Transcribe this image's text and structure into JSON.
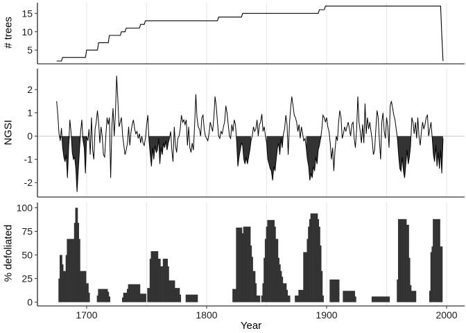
{
  "chart_data": [
    {
      "type": "line",
      "ylabel": "# trees",
      "xlabel": "",
      "xlim": [
        1659,
        2015
      ],
      "ylim": [
        1.25,
        17.9
      ],
      "y_ticks": [
        5,
        10,
        15
      ],
      "y_tick_labels": [
        "5",
        "10",
        "15"
      ],
      "x_gridlines": [
        1700,
        1750,
        1800,
        1850,
        1900,
        1950,
        2000
      ],
      "grid": true,
      "line_color": "#000000",
      "steps": [
        [
          1675,
          2
        ],
        [
          1680,
          3
        ],
        [
          1700,
          5
        ],
        [
          1710,
          7
        ],
        [
          1719,
          9
        ],
        [
          1729,
          10
        ],
        [
          1733,
          11
        ],
        [
          1745,
          12
        ],
        [
          1749,
          13
        ],
        [
          1810,
          14
        ],
        [
          1830,
          15
        ],
        [
          1894,
          16
        ],
        [
          1899,
          17
        ],
        [
          1996,
          9
        ],
        [
          1997,
          2
        ]
      ],
      "end_year": 1997
    },
    {
      "type": "line",
      "ylabel": "NGSI",
      "xlabel": "",
      "xlim": [
        1659,
        2015
      ],
      "ylim": [
        -2.62,
        2.9
      ],
      "y_ticks": [
        -2,
        -1,
        0,
        1,
        2
      ],
      "y_tick_labels": [
        "-2",
        "-1",
        "0",
        "1",
        "2"
      ],
      "x_gridlines": [
        1700,
        1750,
        1800,
        1850,
        1900,
        1950,
        2000
      ],
      "grid": true,
      "zero_line": true,
      "line_color": "#000000",
      "fill_color": "#333333",
      "outbreak_periods": [
        [
          1677,
          1700
        ],
        [
          1752,
          1769
        ],
        [
          1825,
          1837
        ],
        [
          1850,
          1864
        ],
        [
          1883,
          1896
        ],
        [
          1959,
          1970
        ],
        [
          1988,
          1997
        ]
      ],
      "segments": [
        {
          "start": 1675,
          "values": [
            1.5,
            0.9,
            0.1,
            -0.2,
            0.35,
            -0.5,
            -0.9,
            -1.1,
            -0.8,
            -1.8,
            -0.5,
            0.7,
            0.2,
            -0.7,
            -1.0,
            -0.9,
            -1.4,
            -2.4,
            -1.5,
            -0.6,
            0.2,
            0.7,
            -0.2,
            -0.5,
            -1.6,
            0.0,
            -0.2,
            0.3,
            -0.8,
            0.8,
            -0.6,
            -1.0,
            0.3,
            0.6,
            1.1,
            0.6,
            -0.3,
            0.4,
            0.0,
            -0.8,
            -0.9,
            0.0,
            0.8,
            0.5,
            0.8,
            -1.8,
            0.4,
            1.2,
            0.0,
            1.0,
            2.6,
            1.6,
            0.4,
            0.6,
            0.8,
            0.0,
            -0.4,
            -0.8,
            -0.6,
            -0.3,
            0.4,
            -0.4,
            0.2,
            0.5,
            0.7,
            0.3,
            0.1,
            0.2,
            -0.1,
            0.1
          ]
        },
        {
          "start": 1745,
          "values": [
            -0.3,
            0.0,
            -0.3,
            -0.4,
            -0.1,
            0.5,
            0.9,
            -0.2,
            -0.8,
            -1.3,
            -0.5,
            -1.0,
            -0.4,
            -0.7,
            -0.6,
            -0.1,
            -1.2,
            -0.5,
            -0.8,
            -0.3,
            -0.5,
            -0.2,
            -0.6,
            -0.3,
            -0.1,
            0.2,
            -0.6,
            -1.1,
            0.4,
            -0.4,
            -0.7,
            -0.1,
            0.0,
            0.3,
            0.9,
            0.6,
            0.7,
            0.5,
            0.7,
            -0.4,
            0.4,
            -0.5,
            -0.7,
            -0.3,
            -0.6,
            0.5,
            1.8,
            0.8,
            0.4,
            0.3,
            0.0,
            0.8,
            0.9,
            0.3,
            0.0,
            -0.1,
            -0.2,
            0.1,
            0.6,
            0.4,
            0.2,
            0.8,
            1.7,
            1.3,
            0.6,
            0.0,
            -0.1,
            0.2,
            0.1,
            0.4,
            0.6,
            1.3,
            1.0,
            0.5,
            0.0,
            -0.1,
            0.5,
            0.2,
            0.7,
            0.5,
            -0.2,
            -1.3,
            -0.9,
            -0.6,
            -0.3,
            -0.4,
            -1.0,
            -1.2,
            -0.9,
            -1.2,
            -0.9,
            -0.6,
            -0.2
          ]
        },
        {
          "start": 1838,
          "values": [
            0.0,
            0.4,
            0.2,
            0.3,
            0.7,
            0.0,
            0.5,
            0.6,
            0.95,
            0.2,
            0.4,
            0.0,
            -0.3,
            -1.0,
            -1.2,
            -1.4,
            -1.5,
            -1.9,
            -1.3,
            -1.5,
            -1.0,
            -0.5,
            -0.3,
            -0.8,
            -0.1,
            -0.5,
            0.1,
            0.3,
            0.9,
            0.5,
            -0.8,
            0.5,
            1.2,
            1.7,
            1.3,
            0.9,
            0.8,
            0.6,
            0.2,
            0.5,
            -0.1,
            0.4,
            0.1,
            -0.2,
            -0.1,
            -0.5,
            -1.0,
            -1.3,
            -1.9,
            -1.6,
            -1.8,
            -1.3,
            -1.5,
            -0.9,
            -1.2,
            -0.6,
            -0.4,
            -0.1,
            0.3,
            0.9,
            0.8,
            0.6,
            0.8,
            0.4,
            0.2,
            -0.3,
            -1.0,
            -0.5,
            -1.5,
            -0.6,
            0.0,
            -0.2,
            0.6,
            1.1,
            0.8,
            -0.1,
            0.1,
            0.4,
            0.2,
            0.4,
            0.6,
            0.3,
            0.0,
            0.5,
            0.6,
            -0.1,
            -0.5,
            0.3,
            1.7,
            0.6,
            0.2,
            -0.3,
            0.5,
            -0.3,
            1.4,
            0.1,
            0.8,
            0.3,
            0.6,
            0.2,
            -0.2,
            -0.8,
            -0.6,
            0.3,
            1.1,
            0.8,
            -0.2,
            -1.0,
            0.6,
            1.0,
            0.2,
            -0.1,
            0.8,
            0.4,
            -0.5,
            1.3,
            1.5,
            1.2,
            0.9,
            0.7,
            0.3,
            -0.1,
            -0.8,
            -1.4,
            -1.5,
            -0.9,
            -1.5,
            -1.8,
            -1.2,
            -0.6,
            -1.2,
            -0.9,
            -0.4,
            0.8,
            0.6,
            0.1,
            0.6,
            -0.1,
            0.8,
            0.0,
            -0.4,
            0.2,
            0.6,
            0.3,
            0.5,
            0.8,
            0.9,
            0.0,
            0.3,
            0.6,
            -0.1,
            -0.8,
            -1.1,
            -0.4,
            -1.3,
            -0.7,
            -1.4,
            -0.6,
            -1.6,
            -0.1
          ]
        }
      ]
    },
    {
      "type": "bar",
      "ylabel": "% defoliated",
      "xlabel": "Year",
      "xlim": [
        1659,
        2015
      ],
      "ylim": [
        -4,
        105.5
      ],
      "y_ticks": [
        0,
        25,
        50,
        75,
        100
      ],
      "y_tick_labels": [
        "0",
        "25",
        "50",
        "75",
        "100"
      ],
      "x_ticks": [
        1700,
        1800,
        1900,
        2000
      ],
      "x_tick_labels": [
        "1700",
        "1800",
        "1900",
        "2000"
      ],
      "x_gridlines": [
        1700,
        1750,
        1800,
        1850,
        1900,
        1950,
        2000
      ],
      "grid": true,
      "bar_color": "#333333",
      "segments": [
        {
          "start": 1677,
          "values": [
            25,
            50,
            50,
            40,
            33,
            33,
            50,
            67,
            67,
            67,
            67,
            67,
            67,
            84,
            100,
            100,
            84,
            67,
            33,
            33,
            33,
            33,
            33,
            20,
            20,
            10
          ]
        },
        {
          "start": 1709,
          "values": [
            7,
            14,
            14,
            14,
            14,
            14,
            14,
            14,
            14,
            11,
            6
          ]
        },
        {
          "start": 1730,
          "values": [
            5,
            10,
            10,
            10,
            14,
            19,
            19,
            19,
            19,
            19,
            19,
            19,
            19,
            19,
            19,
            9,
            9,
            9,
            9,
            9
          ]
        },
        {
          "start": 1751,
          "values": [
            15,
            15,
            46,
            54,
            54,
            54,
            54,
            54,
            54,
            46,
            46,
            38,
            38,
            46,
            46,
            46,
            46,
            38,
            23,
            23,
            23,
            23,
            23,
            15,
            15,
            15,
            15,
            8
          ]
        },
        {
          "start": 1783,
          "values": [
            8,
            8,
            8,
            8,
            8,
            8,
            8,
            8,
            8,
            8
          ]
        },
        {
          "start": 1822,
          "values": [
            14,
            14,
            14,
            79,
            79,
            79,
            79,
            79,
            73,
            80,
            80,
            80,
            80,
            80,
            80,
            60,
            48,
            33,
            33,
            20,
            7,
            7,
            7
          ]
        },
        {
          "start": 1846,
          "values": [
            7,
            20,
            47,
            67,
            80,
            87,
            87,
            87,
            87,
            87,
            87,
            80,
            67,
            67,
            47,
            40,
            33,
            27,
            20,
            20,
            20,
            13,
            7,
            7
          ]
        },
        {
          "start": 1874,
          "values": [
            7,
            7,
            7,
            13,
            13,
            13,
            13,
            53,
            53,
            53,
            67,
            80,
            88,
            94,
            94,
            94,
            94,
            94,
            94,
            88,
            80,
            60,
            33,
            7
          ]
        },
        {
          "start": 1903,
          "values": [
            24,
            24,
            24,
            24,
            24,
            24,
            24,
            24
          ]
        },
        {
          "start": 1914,
          "values": [
            12,
            12,
            12,
            12,
            12,
            12,
            12,
            12,
            12,
            12,
            6
          ]
        },
        {
          "start": 1938,
          "values": [
            6,
            6,
            6,
            6,
            6,
            6,
            6,
            6,
            6,
            6,
            6,
            6,
            6,
            6,
            6
          ]
        },
        {
          "start": 1959,
          "values": [
            24,
            88,
            88,
            88,
            88,
            88,
            88,
            88,
            82,
            82,
            47,
            18,
            12,
            12,
            12,
            12
          ]
        },
        {
          "start": 1986,
          "values": [
            12,
            53,
            59,
            88,
            88,
            88,
            88,
            88,
            88,
            59,
            59
          ]
        }
      ]
    }
  ]
}
